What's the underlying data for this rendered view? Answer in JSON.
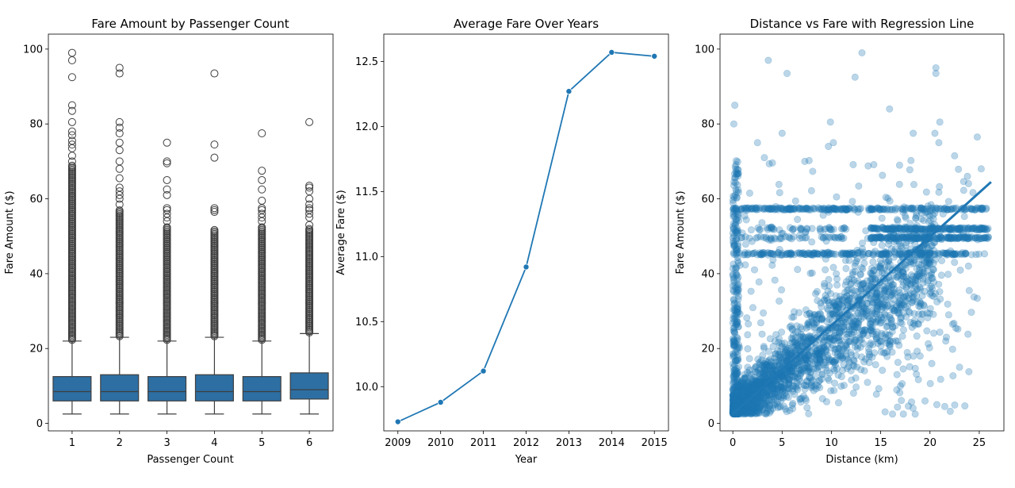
{
  "chart_data": [
    {
      "type": "box",
      "title": "Fare Amount by Passenger Count",
      "xlabel": "Passenger Count",
      "ylabel": "Fare Amount ($)",
      "ylim": [
        -2,
        104
      ],
      "yticks": [
        0,
        20,
        40,
        60,
        80,
        100
      ],
      "color": "#2d6fa3",
      "categories": [
        "1",
        "2",
        "3",
        "4",
        "5",
        "6"
      ],
      "boxes": [
        {
          "category": "1",
          "whisker_low": 2.5,
          "q1": 6.0,
          "median": 8.5,
          "q3": 12.5,
          "whisker_high": 22.0,
          "outlier_min": 22.3,
          "outlier_dense_max": 69.0,
          "outliers": [
            70,
            71.5,
            73.5,
            74.5,
            75.5,
            77,
            78,
            80.5,
            83.5,
            85,
            92.5,
            97,
            99
          ]
        },
        {
          "category": "2",
          "whisker_low": 2.5,
          "q1": 6.0,
          "median": 8.5,
          "q3": 13.0,
          "whisker_high": 23.0,
          "outlier_min": 23.3,
          "outlier_dense_max": 57.0,
          "outliers": [
            58.5,
            60,
            61,
            62,
            63,
            65.5,
            68,
            70,
            73,
            75,
            77.5,
            79,
            80.5,
            93.5,
            95
          ]
        },
        {
          "category": "3",
          "whisker_low": 2.5,
          "q1": 6.0,
          "median": 8.5,
          "q3": 12.5,
          "whisker_high": 22.0,
          "outlier_min": 22.3,
          "outlier_dense_max": 52.5,
          "outliers": [
            54,
            55,
            56,
            57,
            57.5,
            61,
            62.5,
            65,
            69.5,
            70,
            75
          ]
        },
        {
          "category": "4",
          "whisker_low": 2.5,
          "q1": 6.0,
          "median": 8.5,
          "q3": 13.0,
          "whisker_high": 23.0,
          "outlier_min": 23.3,
          "outlier_dense_max": 52.0,
          "outliers": [
            56.5,
            57,
            57.5,
            71,
            74.5,
            93.5
          ]
        },
        {
          "category": "5",
          "whisker_low": 2.5,
          "q1": 6.0,
          "median": 8.5,
          "q3": 12.5,
          "whisker_high": 22.0,
          "outlier_min": 22.3,
          "outlier_dense_max": 52.5,
          "outliers": [
            54,
            55,
            56,
            57,
            57.5,
            59.5,
            62.5,
            65,
            67.5,
            77.5
          ]
        },
        {
          "category": "6",
          "whisker_low": 2.5,
          "q1": 6.5,
          "median": 9.0,
          "q3": 13.5,
          "whisker_high": 24.0,
          "outlier_min": 24.3,
          "outlier_dense_max": 52.0,
          "outliers": [
            53,
            55,
            56,
            57,
            57.5,
            58.5,
            60,
            62,
            63,
            63.5,
            80.5
          ]
        }
      ]
    },
    {
      "type": "line",
      "title": "Average Fare Over Years",
      "xlabel": "Year",
      "ylabel": "Average Fare ($)",
      "xlim": [
        2008.67,
        2015.33
      ],
      "ylim": [
        9.66,
        12.71
      ],
      "yticks": [
        10.0,
        10.5,
        11.0,
        11.5,
        12.0,
        12.5
      ],
      "ytick_labels": [
        "10.0",
        "10.5",
        "11.0",
        "11.5",
        "12.0",
        "12.5"
      ],
      "color": "#1f77b4",
      "x": [
        2009,
        2010,
        2011,
        2012,
        2013,
        2014,
        2015
      ],
      "y": [
        9.73,
        9.88,
        10.12,
        10.92,
        12.27,
        12.57,
        12.54
      ]
    },
    {
      "type": "scatter",
      "title": "Distance vs Fare with Regression Line",
      "xlabel": "Distance (km)",
      "ylabel": "Fare Amount ($)",
      "xlim": [
        -1.3,
        27.5
      ],
      "ylim": [
        -2,
        104
      ],
      "xticks": [
        0,
        5,
        10,
        15,
        20,
        25
      ],
      "yticks": [
        0,
        20,
        40,
        60,
        80,
        100
      ],
      "color": "#1f77b4",
      "point_alpha": 0.3,
      "regression": {
        "x": [
          0,
          26.2
        ],
        "y": [
          2.5,
          64.5
        ]
      },
      "flat_fare_levels": [
        45.3,
        49.6,
        52.0,
        57.3
      ],
      "notable_points": [
        {
          "x": 0.2,
          "y": 85
        },
        {
          "x": 0.1,
          "y": 80
        },
        {
          "x": 3.6,
          "y": 97
        },
        {
          "x": 5.5,
          "y": 93.5
        },
        {
          "x": 13.1,
          "y": 99
        },
        {
          "x": 12.4,
          "y": 92.5
        },
        {
          "x": 20.6,
          "y": 95
        },
        {
          "x": 20.6,
          "y": 93.5
        },
        {
          "x": 9.9,
          "y": 80.5
        },
        {
          "x": 5.0,
          "y": 77.5
        },
        {
          "x": 15.9,
          "y": 84
        },
        {
          "x": 24.8,
          "y": 76.5
        },
        {
          "x": 21.0,
          "y": 80.5
        },
        {
          "x": 20.5,
          "y": 77.5
        },
        {
          "x": 18.3,
          "y": 77.5
        },
        {
          "x": 10.2,
          "y": 75
        },
        {
          "x": 2.5,
          "y": 75
        },
        {
          "x": 3.2,
          "y": 71
        },
        {
          "x": 7.3,
          "y": 70
        },
        {
          "x": 9.7,
          "y": 74
        },
        {
          "x": 20.9,
          "y": 75
        },
        {
          "x": 22.5,
          "y": 71.5
        },
        {
          "x": 25.2,
          "y": 68
        },
        {
          "x": 23.8,
          "y": 66
        },
        {
          "x": 17.0,
          "y": 10
        },
        {
          "x": 19.5,
          "y": 6
        },
        {
          "x": 20.7,
          "y": 5
        },
        {
          "x": 21.5,
          "y": 4.5
        },
        {
          "x": 18.5,
          "y": 2.5
        },
        {
          "x": 17.3,
          "y": 2.5
        },
        {
          "x": 16.2,
          "y": 2.5
        },
        {
          "x": 21.9,
          "y": 29
        },
        {
          "x": 22.3,
          "y": 26.5
        },
        {
          "x": 21.6,
          "y": 22
        },
        {
          "x": 23.0,
          "y": 15
        },
        {
          "x": 19.0,
          "y": 18
        }
      ]
    }
  ]
}
